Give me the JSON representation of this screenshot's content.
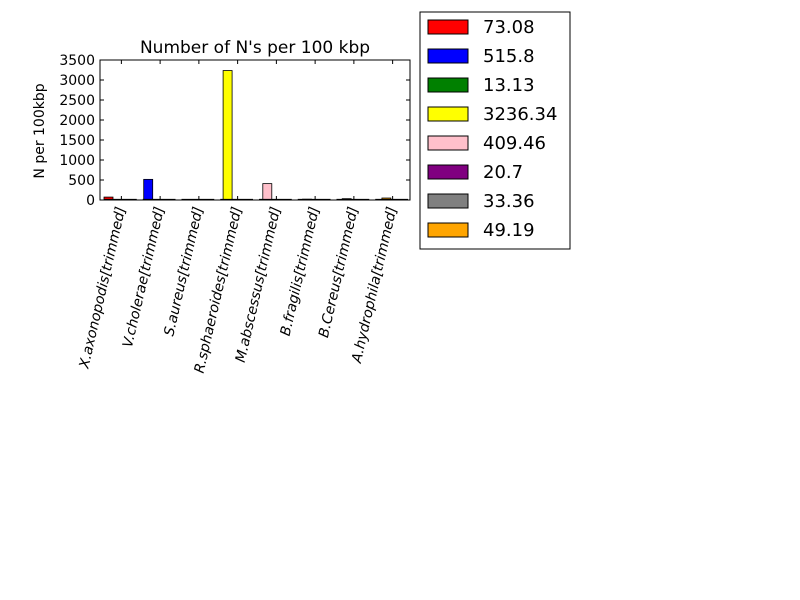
{
  "chart_data": {
    "type": "bar",
    "title": "Number of N's per 100 kbp",
    "xlabel": "",
    "ylabel": "N per 100kbp",
    "ylim": [
      0,
      3500
    ],
    "yticks": [
      0,
      500,
      1000,
      1500,
      2000,
      2500,
      3000,
      3500
    ],
    "grid": false,
    "legend_position": "outside-right-top",
    "categories": [
      "X.axonopodis[trimmed]",
      "V.cholerae[trimmed]",
      "S.aureus[trimmed]",
      "R.sphaeroides[trimmed]",
      "M.abscessus[trimmed]",
      "B.fragilis[trimmed]",
      "B.Cereus[trimmed]",
      "A.hydrophila[trimmed]"
    ],
    "series": [
      {
        "name": "73.08",
        "color": "#ff0000",
        "values": [
          73.08,
          0,
          0,
          0,
          0,
          0,
          0,
          0
        ]
      },
      {
        "name": "515.8",
        "color": "#0000ff",
        "values": [
          0,
          515.8,
          0,
          0,
          0,
          0,
          0,
          0
        ]
      },
      {
        "name": "13.13",
        "color": "#008000",
        "values": [
          0,
          0,
          13.13,
          0,
          0,
          0,
          0,
          0
        ]
      },
      {
        "name": "3236.34",
        "color": "#ffff00",
        "values": [
          0,
          0,
          0,
          3236.34,
          0,
          0,
          0,
          0
        ]
      },
      {
        "name": "409.46",
        "color": "#ffc0cb",
        "values": [
          0,
          0,
          0,
          0,
          409.46,
          0,
          0,
          0
        ]
      },
      {
        "name": "20.7",
        "color": "#800080",
        "values": [
          0,
          0,
          0,
          0,
          0,
          20.7,
          0,
          0
        ]
      },
      {
        "name": "33.36",
        "color": "#808080",
        "values": [
          0,
          0,
          0,
          0,
          0,
          0,
          33.36,
          0
        ]
      },
      {
        "name": "49.19",
        "color": "#ffa500",
        "values": [
          0,
          0,
          0,
          0,
          0,
          0,
          0,
          49.19
        ]
      }
    ]
  }
}
